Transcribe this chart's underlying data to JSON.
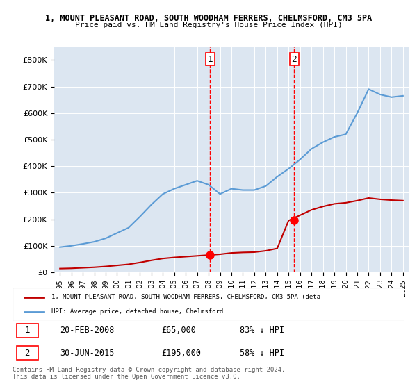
{
  "title_line1": "1, MOUNT PLEASANT ROAD, SOUTH WOODHAM FERRERS, CHELMSFORD, CM3 5PA",
  "title_line2": "Price paid vs. HM Land Registry's House Price Index (HPI)",
  "ylabel": "",
  "xlabel": "",
  "ylim": [
    0,
    850000
  ],
  "yticks": [
    0,
    100000,
    200000,
    300000,
    400000,
    500000,
    600000,
    700000,
    800000
  ],
  "ytick_labels": [
    "£0",
    "£100K",
    "£200K",
    "£300K",
    "£400K",
    "£500K",
    "£600K",
    "£700K",
    "£800K"
  ],
  "hpi_color": "#5b9bd5",
  "price_color": "#c00000",
  "dashed_color": "#ff0000",
  "bg_color": "#dce6f1",
  "transaction1_date": 2008.13,
  "transaction1_price": 65000,
  "transaction1_label": "1",
  "transaction2_date": 2015.5,
  "transaction2_price": 195000,
  "transaction2_label": "2",
  "legend_line1": "1, MOUNT PLEASANT ROAD, SOUTH WOODHAM FERRERS, CHELMSFORD, CM3 5PA (deta",
  "legend_line2": "HPI: Average price, detached house, Chelmsford",
  "footnote_line1": "Contains HM Land Registry data © Crown copyright and database right 2024.",
  "footnote_line2": "This data is licensed under the Open Government Licence v3.0.",
  "table_row1": [
    "1",
    "20-FEB-2008",
    "£65,000",
    "83% ↓ HPI"
  ],
  "table_row2": [
    "2",
    "30-JUN-2015",
    "£195,000",
    "58% ↓ HPI"
  ],
  "hpi_years": [
    1995,
    1996,
    1997,
    1998,
    1999,
    2000,
    2001,
    2002,
    2003,
    2004,
    2005,
    2006,
    2007,
    2008,
    2009,
    2010,
    2011,
    2012,
    2013,
    2014,
    2015,
    2016,
    2017,
    2018,
    2019,
    2020,
    2021,
    2022,
    2023,
    2024,
    2025
  ],
  "hpi_values": [
    95000,
    100000,
    107000,
    115000,
    128000,
    148000,
    168000,
    210000,
    255000,
    295000,
    315000,
    330000,
    345000,
    330000,
    295000,
    315000,
    310000,
    310000,
    325000,
    360000,
    390000,
    425000,
    465000,
    490000,
    510000,
    520000,
    600000,
    690000,
    670000,
    660000,
    665000
  ],
  "price_years": [
    1995,
    1996,
    1997,
    1998,
    1999,
    2000,
    2001,
    2002,
    2003,
    2004,
    2005,
    2006,
    2007,
    2008,
    2009,
    2010,
    2011,
    2012,
    2013,
    2014,
    2015,
    2016,
    2017,
    2018,
    2019,
    2020,
    2021,
    2022,
    2023,
    2024,
    2025
  ],
  "price_values": [
    14000,
    15000,
    17000,
    19000,
    22000,
    26000,
    30000,
    37000,
    45000,
    52000,
    56000,
    59000,
    62000,
    65000,
    68000,
    73000,
    75000,
    76000,
    81000,
    90000,
    195000,
    215000,
    235000,
    248000,
    258000,
    262000,
    270000,
    280000,
    275000,
    272000,
    270000
  ]
}
